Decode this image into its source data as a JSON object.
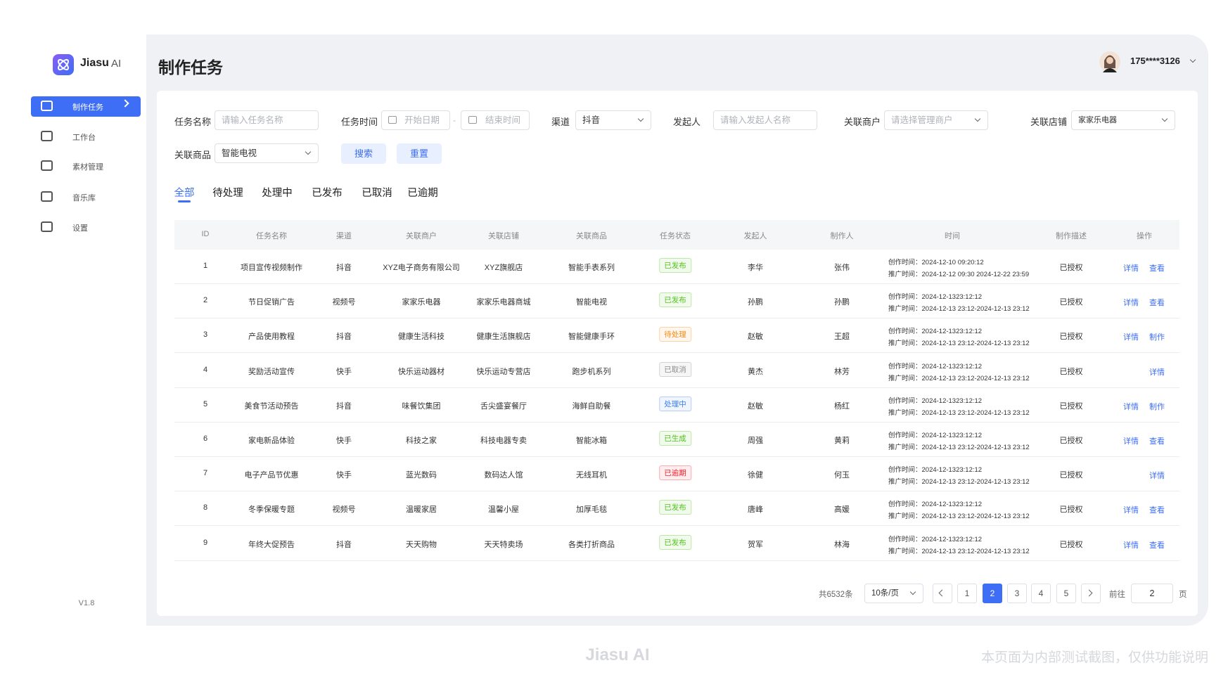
{
  "brand": {
    "name": "Jiasu",
    "suffix": "AI"
  },
  "nav": [
    {
      "label": "制作任务",
      "active": true
    },
    {
      "label": "工作台",
      "active": false
    },
    {
      "label": "素材管理",
      "active": false
    },
    {
      "label": "音乐库",
      "active": false
    },
    {
      "label": "设置",
      "active": false
    }
  ],
  "version": "V1.8",
  "header": {
    "title": "制作任务",
    "user": "175****3126"
  },
  "filters": {
    "task_name": {
      "label": "任务名称",
      "placeholder": "请输入任务名称"
    },
    "task_time": {
      "label": "任务时间",
      "start": "开始日期",
      "separator": "-",
      "end": "结束时间"
    },
    "channel": {
      "label": "渠道",
      "value": "抖音"
    },
    "initiator": {
      "label": "发起人",
      "placeholder": "请输入发起人名称"
    },
    "merchant": {
      "label": "关联商户",
      "placeholder": "请选择管理商户"
    },
    "store": {
      "label": "关联店铺",
      "value": "家家乐电器"
    },
    "product": {
      "label": "关联商品",
      "value": "智能电视"
    }
  },
  "buttons": {
    "search": "搜索",
    "reset": "重置"
  },
  "tabs": [
    {
      "label": "全部",
      "active": true
    },
    {
      "label": "待处理",
      "active": false
    },
    {
      "label": "处理中",
      "active": false
    },
    {
      "label": "已发布",
      "active": false
    },
    {
      "label": "已取消",
      "active": false
    },
    {
      "label": "已逾期",
      "active": false
    }
  ],
  "table": {
    "columns": [
      "ID",
      "任务名称",
      "渠道",
      "关联商户",
      "关联店铺",
      "关联商品",
      "任务状态",
      "发起人",
      "制作人",
      "时间",
      "制作描述",
      "操作"
    ],
    "rows": [
      {
        "id": 1,
        "name": "项目宣传视频制作",
        "channel": "抖音",
        "merchant": "XYZ电子商务有限公司",
        "store": "XYZ旗舰店",
        "product": "智能手表系列",
        "status": "已发布",
        "status_color": "#52c41a",
        "initiator": "李华",
        "maker": "张伟",
        "created": "创作时间：2024-12-10 09:20:12",
        "promoted": "推广时间：2024-12-12 09:30 2024-12-22 23:59",
        "desc": "已授权",
        "actions": [
          "详情",
          "查看"
        ]
      },
      {
        "id": 2,
        "name": "节日促销广告",
        "channel": "视频号",
        "merchant": "家家乐电器",
        "store": "家家乐电器商城",
        "product": "智能电视",
        "status": "已发布",
        "status_color": "#52c41a",
        "initiator": "孙鹏",
        "maker": "孙鹏",
        "created": "创作时间：2024-12-1323:12:12",
        "promoted": "推广时间：2024-12-13 23:12-2024-12-13 23:12",
        "desc": "已授权",
        "actions": [
          "详情",
          "查看"
        ]
      },
      {
        "id": 3,
        "name": "产品使用教程",
        "channel": "抖音",
        "merchant": "健康生活科技",
        "store": "健康生活旗舰店",
        "product": "智能健康手环",
        "status": "待处理",
        "status_color": "#fa8c16",
        "initiator": "赵敏",
        "maker": "王超",
        "created": "创作时间：2024-12-1323:12:12",
        "promoted": "推广时间：2024-12-13 23:12-2024-12-13 23:12",
        "desc": "已授权",
        "actions": [
          "详情",
          "制作"
        ]
      },
      {
        "id": 4,
        "name": "奖励活动宣传",
        "channel": "快手",
        "merchant": "快乐运动器材",
        "store": "快乐运动专营店",
        "product": "跑步机系列",
        "status": "已取消",
        "status_color": "#8c8c8c",
        "initiator": "黄杰",
        "maker": "林芳",
        "created": "创作时间：2024-12-1323:12:12",
        "promoted": "推广时间：2024-12-13 23:12-2024-12-13 23:12",
        "desc": "已授权",
        "actions": [
          "详情"
        ]
      },
      {
        "id": 5,
        "name": "美食节活动预告",
        "channel": "抖音",
        "merchant": "味餐饮集团",
        "store": "舌尖盛宴餐厅",
        "product": "海鲜自助餐",
        "status": "处理中",
        "status_color": "#3d7ef5",
        "initiator": "赵敏",
        "maker": "杨红",
        "created": "创作时间：2024-12-1323:12:12",
        "promoted": "推广时间：2024-12-13 23:12-2024-12-13 23:12",
        "desc": "已授权",
        "actions": [
          "详情",
          "制作"
        ]
      },
      {
        "id": 6,
        "name": "家电新品体验",
        "channel": "快手",
        "merchant": "科技之家",
        "store": "科技电器专卖",
        "product": "智能冰箱",
        "status": "已生成",
        "status_color": "#52c41a",
        "initiator": "周强",
        "maker": "黄莉",
        "created": "创作时间：2024-12-1323:12:12",
        "promoted": "推广时间：2024-12-13 23:12-2024-12-13 23:12",
        "desc": "已授权",
        "actions": [
          "详情",
          "查看"
        ]
      },
      {
        "id": 7,
        "name": "电子产品节优惠",
        "channel": "快手",
        "merchant": "蓝光数码",
        "store": "数码达人馆",
        "product": "无线耳机",
        "status": "已逾期",
        "status_color": "#f5222d",
        "initiator": "徐健",
        "maker": "何玉",
        "created": "创作时间：2024-12-1323:12:12",
        "promoted": "推广时间：2024-12-13 23:12-2024-12-13 23:12",
        "desc": "已授权",
        "actions": [
          "详情"
        ]
      },
      {
        "id": 8,
        "name": "冬季保暖专题",
        "channel": "视频号",
        "merchant": "温暖家居",
        "store": "温馨小屋",
        "product": "加厚毛毯",
        "status": "已发布",
        "status_color": "#52c41a",
        "initiator": "唐峰",
        "maker": "高媛",
        "created": "创作时间：2024-12-1323:12:12",
        "promoted": "推广时间：2024-12-13 23:12-2024-12-13 23:12",
        "desc": "已授权",
        "actions": [
          "详情",
          "查看"
        ]
      },
      {
        "id": 9,
        "name": "年终大促预告",
        "channel": "抖音",
        "merchant": "天天购物",
        "store": "天天特卖场",
        "product": "各类打折商品",
        "status": "已发布",
        "status_color": "#52c41a",
        "initiator": "贺军",
        "maker": "林海",
        "created": "创作时间：2024-12-1323:12:12",
        "promoted": "推广时间：2024-12-13 23:12-2024-12-13 23:12",
        "desc": "已授权",
        "actions": [
          "详情",
          "查看"
        ]
      }
    ]
  },
  "pagination": {
    "total": "共6532条",
    "page_size": "10条/页",
    "pages": [
      {
        "label": 1,
        "active": false
      },
      {
        "label": 2,
        "active": true
      },
      {
        "label": 3,
        "active": false
      },
      {
        "label": 4,
        "active": false
      },
      {
        "label": 5,
        "active": false
      }
    ],
    "goto": "前往",
    "goto_value": "2",
    "unit": "页"
  },
  "footer": {
    "brand": "Jiasu AI",
    "note": "本页面为内部测试截图，仅供功能说明"
  }
}
